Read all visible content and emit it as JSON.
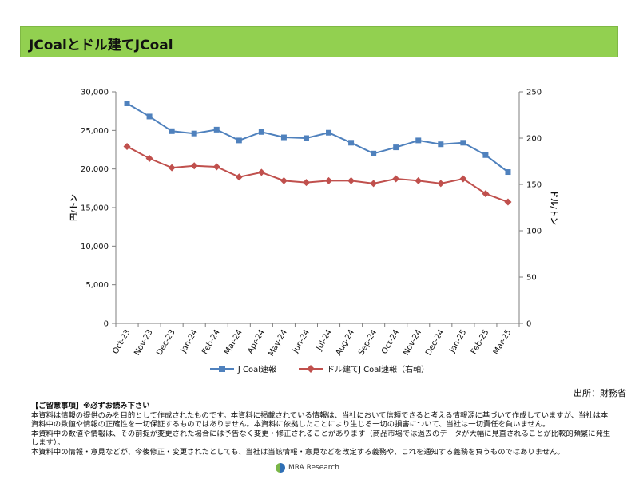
{
  "header": {
    "title": "JCoalとドル建てJCoal"
  },
  "chart_data": {
    "type": "line",
    "categories": [
      "Oct-23",
      "Nov-23",
      "Dec-23",
      "Jan-24",
      "Feb-24",
      "Mar-24",
      "Apr-24",
      "May-24",
      "Jun-24",
      "Jul-24",
      "Aug-24",
      "Sep-24",
      "Oct-24",
      "Nov-24",
      "Dec-24",
      "Jan-25",
      "Feb-25",
      "Mar-25"
    ],
    "series": [
      {
        "name": "J Coal速報",
        "axis": "left",
        "color": "#4f81bd",
        "marker": "square",
        "values": [
          28500,
          26800,
          24900,
          24600,
          25100,
          23700,
          24800,
          24100,
          24000,
          24700,
          23400,
          22000,
          22800,
          23700,
          23200,
          23400,
          21800,
          19600
        ]
      },
      {
        "name": "ドル建てJ Coal速報（右軸）",
        "axis": "right",
        "color": "#c0504d",
        "marker": "diamond",
        "values": [
          191,
          178,
          168,
          170,
          169,
          158,
          163,
          154,
          152,
          154,
          154,
          151,
          156,
          154,
          151,
          156,
          140,
          131
        ]
      }
    ],
    "ylabel": "円/トン",
    "y2label": "ドル/トン",
    "ylim": [
      0,
      30000
    ],
    "y2lim": [
      0,
      250
    ],
    "yticks": [
      "0",
      "5,000",
      "10,000",
      "15,000",
      "20,000",
      "25,000",
      "30,000"
    ],
    "y2ticks": [
      "0",
      "50",
      "100",
      "150",
      "200",
      "250"
    ],
    "grid": false,
    "legend": "bottom"
  },
  "source": "出所：財務省",
  "notes": {
    "heading": "【ご留意事項】※必ずお読み下さい",
    "lines": [
      "本資料は情報の提供のみを目的として作成されたものです。本資料に掲載されている情報は、当社において信頼できると考える情報源に基づいて作成していますが、当社は本資料中の数値や情報の正確性を一切保証するものではありません。本資料に依拠したことにより生じる一切の損害について、当社は一切責任を負いません。",
      "本資料中の数値や情報は、その前提が変更された場合には予告なく変更・修正されることがあります（商品市場では過去のデータが大幅に見直されることが比較的頻繁に発生します）。",
      "本資料中の情報・意見などが、今後修正・変更されたとしても、当社は当該情報・意見などを改定する義務や、これを通知する義務を負うものではありません。"
    ]
  },
  "footer": {
    "brand": "MRA Research"
  }
}
